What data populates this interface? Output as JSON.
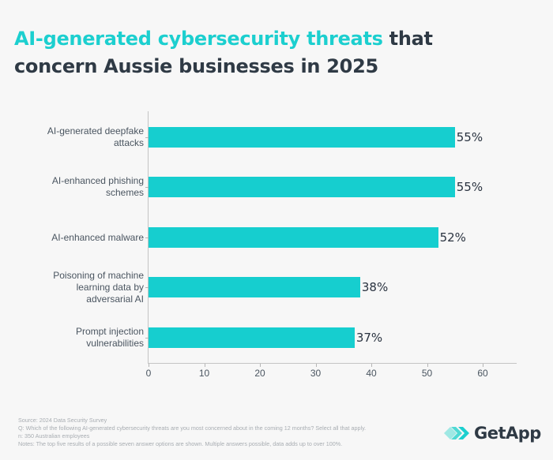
{
  "title": {
    "highlight": "AI-generated cybersecurity threats",
    "rest_line1": " that",
    "line2": "concern Aussie businesses in 2025"
  },
  "chart_data": {
    "type": "bar",
    "orientation": "horizontal",
    "title": "AI-generated cybersecurity threats that concern Aussie businesses in 2025",
    "categories": [
      "AI-generated deepfake attacks",
      "AI-enhanced phishing schemes",
      "AI-enhanced malware",
      "Poisoning of machine learning data by adversarial AI",
      "Prompt injection vulnerabilities"
    ],
    "values": [
      55,
      55,
      52,
      38,
      37
    ],
    "value_labels": [
      "55%",
      "55%",
      "52%",
      "38%",
      "37%"
    ],
    "xlabel": "",
    "ylabel": "",
    "xlim": [
      0,
      66
    ],
    "x_ticks": [
      0,
      10,
      20,
      30,
      40,
      50,
      60
    ],
    "grid": false,
    "legend": null,
    "bar_color": "#16cecf"
  },
  "labels": {
    "cat0": [
      "AI-generated deepfake",
      "attacks"
    ],
    "cat1": [
      "AI-enhanced phishing",
      "schemes"
    ],
    "cat2": [
      "AI-enhanced malware"
    ],
    "cat3": [
      "Poisoning of machine",
      "learning data by",
      "adversarial AI"
    ],
    "cat4": [
      "Prompt injection",
      "vulnerabilities"
    ]
  },
  "footer": {
    "source": "Source: 2024 Data Security Survey",
    "question": "Q: Which of the following AI-generated cybersecurity threats are you most concerned about in the coming 12 months? Select all that apply.",
    "n": "n: 350 Australian employees",
    "notes": "Notes: The top five results of a possible seven answer options are shown. Multiple answers possible, data adds up to over 100%."
  },
  "brand": {
    "name": "GetApp",
    "icon": "getapp-chevrons-icon",
    "accent": "#1ccfcf"
  }
}
